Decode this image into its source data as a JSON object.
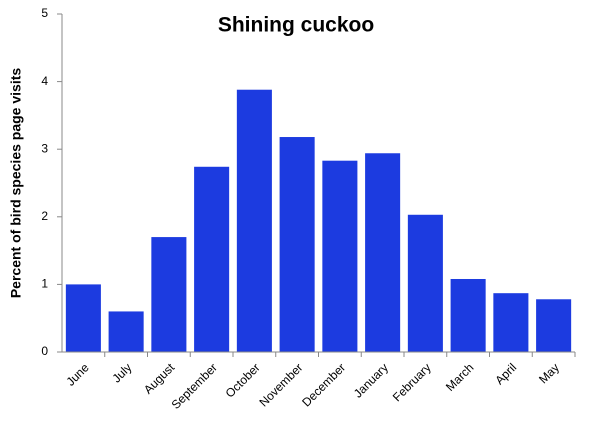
{
  "chart_data": {
    "type": "bar",
    "title": "Shining cuckoo",
    "ylabel": "Percent of bird species page visits",
    "categories": [
      "June",
      "July",
      "August",
      "September",
      "October",
      "November",
      "December",
      "January",
      "February",
      "March",
      "April",
      "May"
    ],
    "values": [
      1.0,
      0.6,
      1.7,
      2.74,
      3.88,
      3.18,
      2.83,
      2.94,
      2.03,
      1.08,
      0.87,
      0.78
    ],
    "color": "#1c3be0",
    "ylim": [
      0,
      5
    ],
    "yticks": [
      0,
      1,
      2,
      3,
      4,
      5
    ],
    "grid": false
  }
}
